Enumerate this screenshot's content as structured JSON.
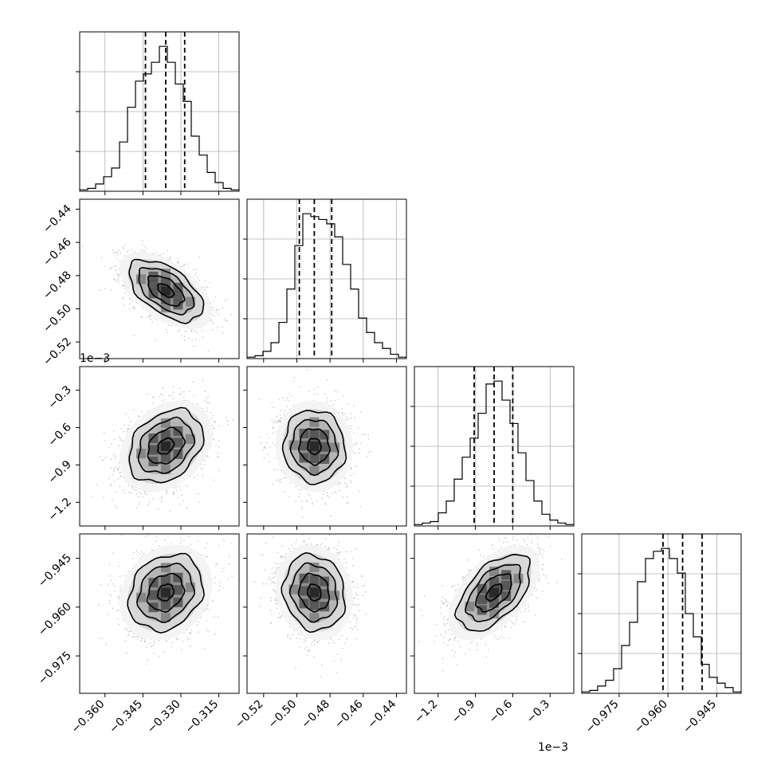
{
  "chart_data": {
    "type": "corner",
    "params": [
      {
        "range": [
          -0.37,
          -0.307
        ],
        "ticks": [
          -0.36,
          -0.345,
          -0.33,
          -0.315
        ],
        "tick_labels": [
          "−0.360",
          "−0.345",
          "−0.330",
          "−0.315"
        ],
        "quantiles": [
          -0.344,
          -0.336,
          -0.3285
        ],
        "offset_label": ""
      },
      {
        "range": [
          -0.53,
          -0.434
        ],
        "ticks": [
          -0.52,
          -0.5,
          -0.48,
          -0.46,
          -0.44
        ],
        "tick_labels": [
          "−0.52",
          "−0.50",
          "−0.48",
          "−0.46",
          "−0.44"
        ],
        "quantiles": [
          -0.4985,
          -0.4895,
          -0.479
        ],
        "offset_label": ""
      },
      {
        "range": [
          -1.39,
          -0.11
        ],
        "ticks": [
          -1.2,
          -0.9,
          -0.6,
          -0.3
        ],
        "tick_labels": [
          "−1.2",
          "−0.9",
          "−0.6",
          "−0.3"
        ],
        "quantiles": [
          -0.91,
          -0.75,
          -0.6
        ],
        "offset_label": "1e−3"
      },
      {
        "range": [
          -0.9865,
          -0.9375
        ],
        "ticks": [
          -0.975,
          -0.96,
          -0.945
        ],
        "tick_labels": [
          "−0.975",
          "−0.960",
          "−0.945"
        ],
        "quantiles": [
          -0.9615,
          -0.9555,
          -0.9495
        ],
        "offset_label": ""
      }
    ],
    "histograms": [
      [
        1,
        2,
        5,
        10,
        16,
        34,
        58,
        76,
        81,
        89,
        100,
        89,
        74,
        62,
        38,
        25,
        13,
        6,
        2,
        1
      ],
      [
        1,
        2,
        5,
        11,
        25,
        48,
        78,
        100,
        98,
        96,
        93,
        84,
        65,
        48,
        28,
        18,
        11,
        7,
        3,
        1
      ],
      [
        1,
        2,
        3,
        9,
        17,
        32,
        47,
        60,
        77,
        97,
        99,
        86,
        70,
        50,
        31,
        17,
        8,
        4,
        2,
        1
      ],
      [
        1,
        2,
        5,
        9,
        17,
        33,
        49,
        77,
        93,
        98,
        100,
        93,
        83,
        55,
        39,
        20,
        11,
        7,
        4,
        1
      ]
    ],
    "pairs": [
      {
        "i": 1,
        "j": 0,
        "mean": [
          -0.336,
          -0.489
        ],
        "sd": [
          0.0075,
          0.0095
        ],
        "rho": -0.55
      },
      {
        "i": 2,
        "j": 0,
        "mean": [
          -0.336,
          -0.75
        ],
        "sd": [
          0.0075,
          0.15
        ],
        "rho": 0.3
      },
      {
        "i": 2,
        "j": 1,
        "mean": [
          -0.4895,
          -0.75
        ],
        "sd": [
          0.0095,
          0.15
        ],
        "rho": -0.05
      },
      {
        "i": 3,
        "j": 0,
        "mean": [
          -0.336,
          -0.9555
        ],
        "sd": [
          0.0075,
          0.006
        ],
        "rho": 0.2
      },
      {
        "i": 3,
        "j": 1,
        "mean": [
          -0.4895,
          -0.9555
        ],
        "sd": [
          0.0095,
          0.006
        ],
        "rho": -0.12
      },
      {
        "i": 3,
        "j": 2,
        "mean": [
          -0.75,
          -0.9555
        ],
        "sd": [
          0.15,
          0.006
        ],
        "rho": 0.55
      }
    ],
    "contour_levels_sigma": [
      0.5,
      1.0,
      1.5,
      2.0
    ],
    "grid": true
  }
}
